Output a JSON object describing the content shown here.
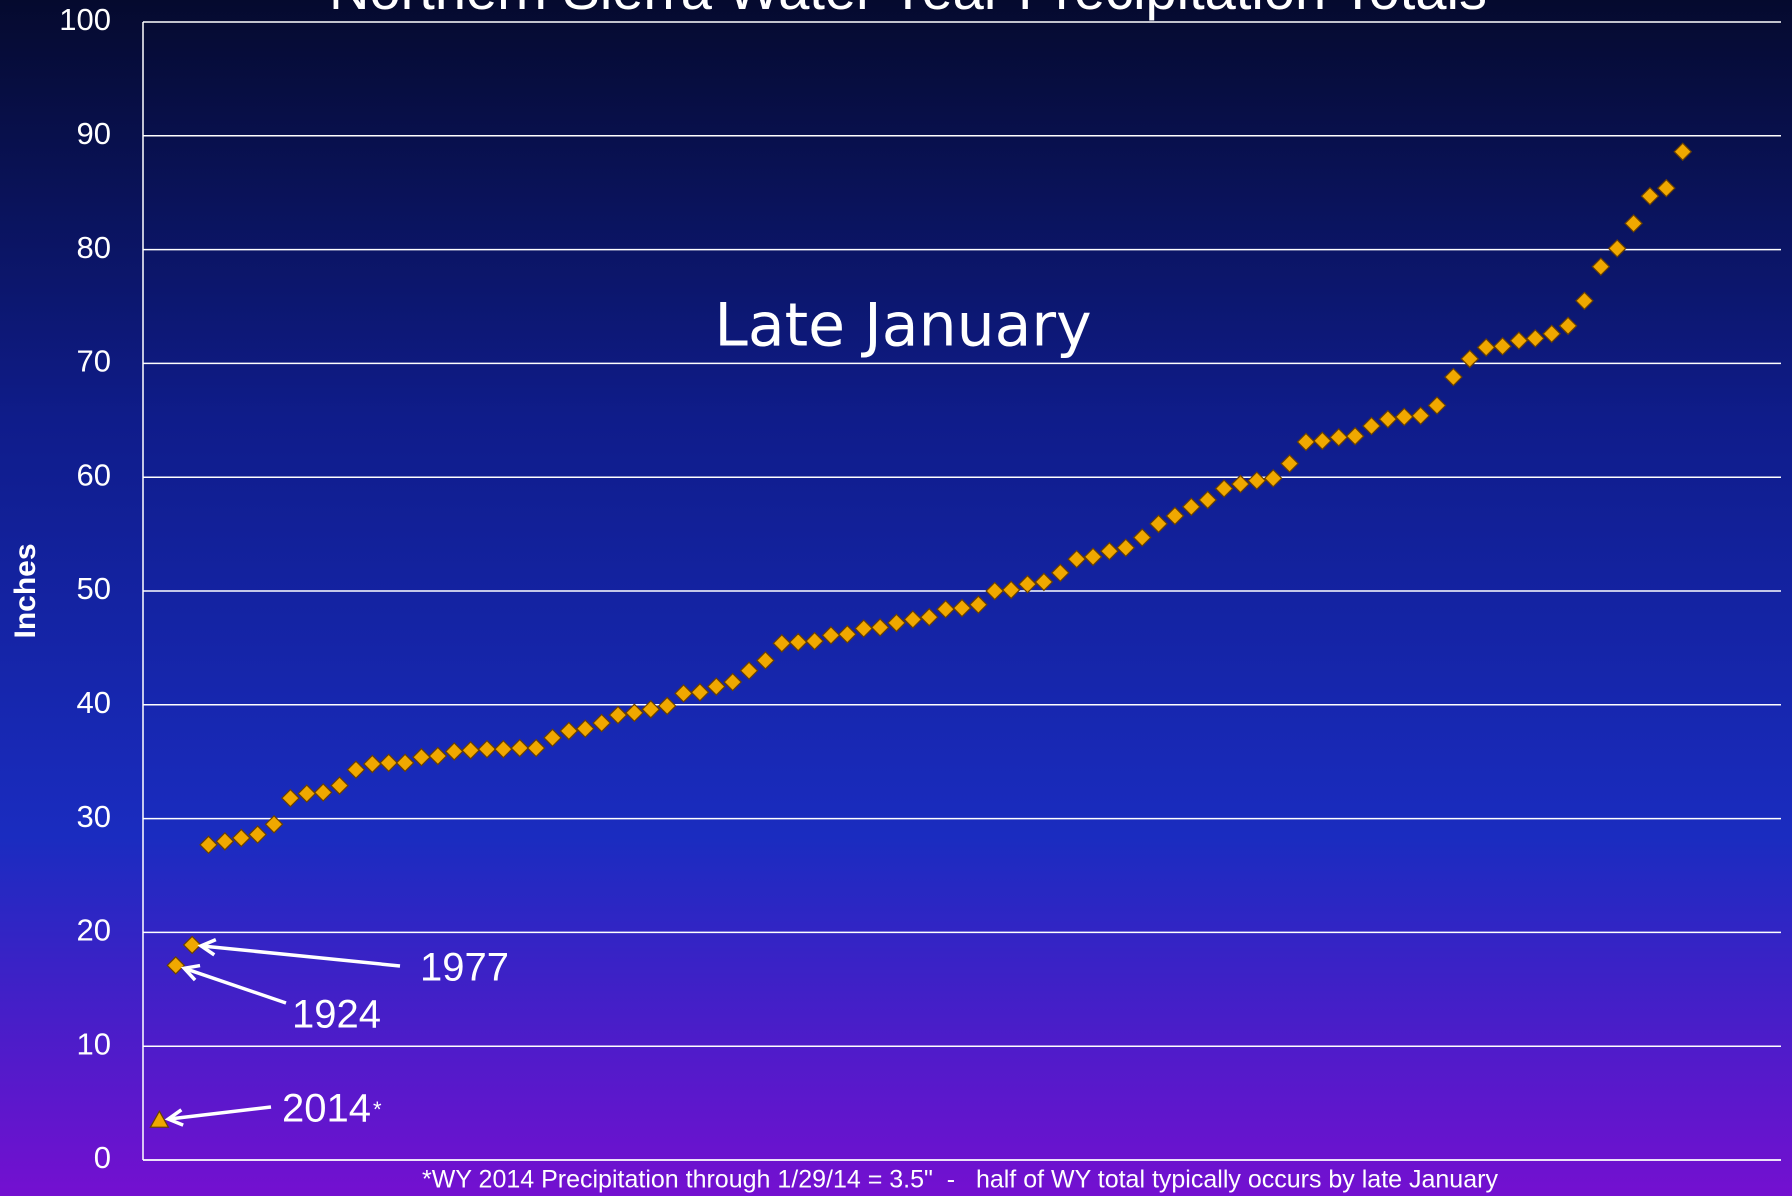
{
  "chart_data": {
    "type": "scatter",
    "title": "Northern Sierra Water Year Precipitation Totals",
    "subtitle": "Late January",
    "y_label": "Inches",
    "footnote": "*WY 2014 Precipitation through 1/29/14 = 3.5\"  -   half of WY total typically occurs by late January",
    "xlim": [
      0,
      100
    ],
    "ylim": [
      0,
      100
    ],
    "yticks": [
      0,
      10,
      20,
      30,
      40,
      50,
      60,
      70,
      80,
      90,
      100
    ],
    "grid": true,
    "series": [
      {
        "color": "#f0a800",
        "marker": "triangle",
        "x": [
          1
        ],
        "values": [
          3.5
        ]
      },
      {
        "color": "#f0a800",
        "marker": "diamond",
        "x": [
          2,
          3,
          4,
          5,
          6,
          7,
          8,
          9,
          10,
          11,
          12,
          13,
          14,
          15,
          16,
          17,
          18,
          19,
          20,
          21,
          22,
          23,
          24,
          25,
          26,
          27,
          28,
          29,
          30,
          31,
          32,
          33,
          34,
          35,
          36,
          37,
          38,
          39,
          40,
          41,
          42,
          43,
          44,
          45,
          46,
          47,
          48,
          49,
          50,
          51,
          52,
          53,
          54,
          55,
          56,
          57,
          58,
          59,
          60,
          61,
          62,
          63,
          64,
          65,
          66,
          67,
          68,
          69,
          70,
          71,
          72,
          73,
          74,
          75,
          76,
          77,
          78,
          79,
          80,
          81,
          82,
          83,
          84,
          85,
          86,
          87,
          88,
          89,
          90,
          91,
          92,
          93,
          94
        ],
        "values": [
          17.1,
          18.9,
          27.7,
          28.0,
          28.3,
          28.6,
          29.5,
          31.8,
          32.2,
          32.3,
          32.9,
          34.3,
          34.8,
          34.9,
          34.9,
          35.4,
          35.5,
          35.9,
          36.0,
          36.1,
          36.1,
          36.2,
          36.2,
          37.1,
          37.7,
          37.9,
          38.4,
          39.1,
          39.3,
          39.6,
          39.9,
          41.0,
          41.1,
          41.6,
          42.0,
          43.0,
          43.9,
          45.4,
          45.5,
          45.6,
          46.1,
          46.2,
          46.7,
          46.8,
          47.2,
          47.5,
          47.7,
          48.4,
          48.5,
          48.8,
          50.0,
          50.1,
          50.6,
          50.8,
          51.6,
          52.8,
          53.0,
          53.5,
          53.8,
          54.7,
          55.9,
          56.6,
          57.4,
          58.0,
          59.0,
          59.4,
          59.7,
          59.9,
          61.2,
          63.1,
          63.2,
          63.5,
          63.6,
          64.5,
          65.1,
          65.3,
          65.4,
          66.3,
          68.8,
          70.4,
          71.4,
          71.5,
          72.0,
          72.2,
          72.6,
          73.3,
          75.5,
          78.5,
          80.1,
          82.3,
          84.7,
          85.4,
          88.6
        ]
      }
    ],
    "annotations": [
      {
        "text": "1977"
      },
      {
        "text": "1924"
      },
      {
        "text": "2014",
        "note": "*"
      }
    ]
  }
}
